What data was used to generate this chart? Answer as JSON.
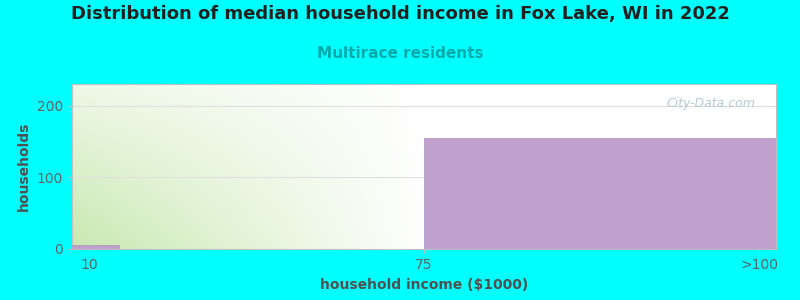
{
  "title": "Distribution of median household income in Fox Lake, WI in 2022",
  "subtitle": "Multirace residents",
  "subtitle_color": "#00aaaa",
  "xlabel": "household income ($1000)",
  "ylabel": "households",
  "background_color": "#00ffff",
  "plot_bg_color": "#ffffff",
  "bar_categories": [
    "10",
    "75",
    ">100"
  ],
  "bar_values": [
    5,
    0,
    155
  ],
  "bar_color": "#c0a0cc",
  "bar_edge_color": "#b090c0",
  "ylim": [
    0,
    230
  ],
  "yticks": [
    0,
    100,
    200
  ],
  "title_fontsize": 13,
  "subtitle_fontsize": 11,
  "axis_label_fontsize": 10,
  "tick_fontsize": 10,
  "watermark_text": "City-Data.com",
  "tick_color": "#606060",
  "label_color": "#505050",
  "grid_color": "#e0e0e0",
  "green_top": "#ffffff",
  "green_bottom": "#c8e8b0",
  "xlim": [
    -0.05,
    2.05
  ]
}
